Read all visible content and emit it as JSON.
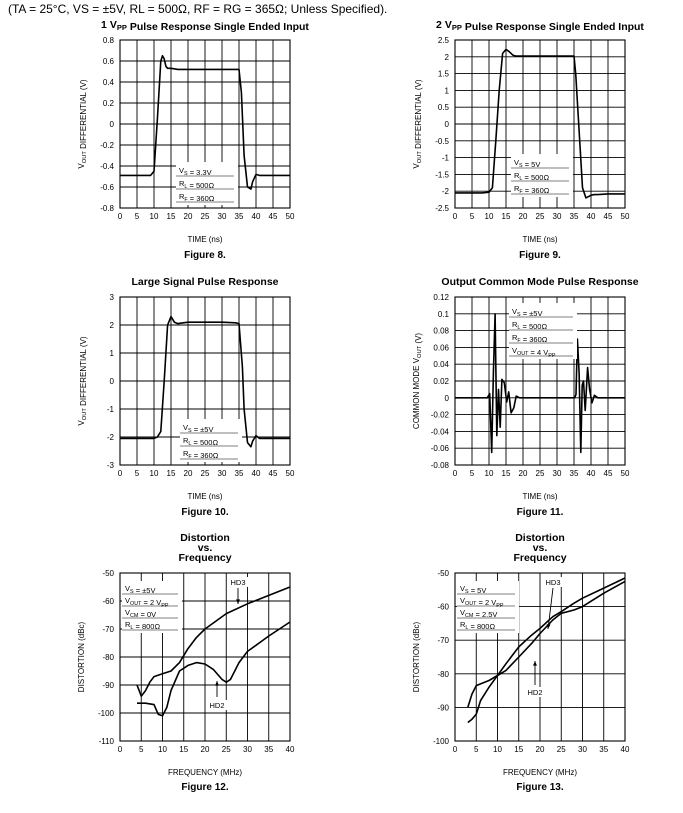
{
  "header": {
    "conditions": "(TA = 25°C, VS = ±5V, RL = 500Ω, RF = RG = 365Ω; Unless Specified)."
  },
  "chart_data": [
    {
      "id": "fig8",
      "type": "line",
      "title": [
        "1 VPP Pulse Response Single Ended Input"
      ],
      "caption": "Figure 8.",
      "xlabel": "TIME (ns)",
      "ylabel": "VOUT DIFFERENTIAL (V)",
      "xlim": [
        0,
        50
      ],
      "ylim": [
        -0.8,
        0.8
      ],
      "x_ticks": [
        "0",
        "5",
        "10",
        "15",
        "20",
        "25",
        "30",
        "35",
        "40",
        "45",
        "50"
      ],
      "y_ticks": [
        "0.8",
        "0.6",
        "0.4",
        "0.2",
        "0",
        "-0.2",
        "-0.4",
        "-0.6",
        "-0.8"
      ],
      "legend": [
        "VS = 3.3V",
        "RL = 500Ω",
        "RF = 360Ω"
      ],
      "series": [
        {
          "name": "VOUT",
          "x": [
            0,
            7,
            9,
            10,
            11,
            12,
            12.5,
            13,
            13.5,
            14,
            15,
            17,
            20,
            25,
            30,
            34,
            35,
            35.7,
            36.5,
            37.5,
            38.5,
            39,
            40,
            41,
            43,
            46,
            50
          ],
          "y": [
            -0.49,
            -0.49,
            -0.49,
            -0.45,
            0.05,
            0.6,
            0.65,
            0.62,
            0.55,
            0.53,
            0.53,
            0.52,
            0.52,
            0.52,
            0.52,
            0.52,
            0.52,
            0.3,
            -0.3,
            -0.6,
            -0.62,
            -0.55,
            -0.48,
            -0.49,
            -0.49,
            -0.49,
            -0.49
          ]
        }
      ]
    },
    {
      "id": "fig9",
      "type": "line",
      "title": [
        "2 VPP Pulse Response Single Ended Input"
      ],
      "caption": "Figure 9.",
      "xlabel": "TIME (ns)",
      "ylabel": "VOUT DIFFERENTIAL (V)",
      "xlim": [
        0,
        50
      ],
      "ylim": [
        -2.5,
        2.5
      ],
      "x_ticks": [
        "0",
        "5",
        "10",
        "15",
        "20",
        "25",
        "30",
        "35",
        "40",
        "45",
        "50"
      ],
      "y_ticks": [
        "2.5",
        "2",
        "1.5",
        "1",
        "0.5",
        "0",
        "-0.5",
        "-1",
        "-1.5",
        "-2",
        "-2.5"
      ],
      "legend": [
        "VS = 5V",
        "RL = 500Ω",
        "RF = 360Ω"
      ],
      "series": [
        {
          "name": "VOUT",
          "x": [
            0,
            8,
            10,
            11,
            12,
            13,
            14,
            15,
            16,
            17,
            18,
            20,
            25,
            30,
            35,
            35.5,
            36.5,
            37.5,
            38.5,
            39.5,
            40,
            41,
            42,
            45,
            50
          ],
          "y": [
            -2.05,
            -2.05,
            -2.03,
            -1.9,
            -0.5,
            1.0,
            2.1,
            2.22,
            2.15,
            2.05,
            2.02,
            2.02,
            2.02,
            2.02,
            2.02,
            1.5,
            -0.2,
            -1.9,
            -2.2,
            -2.15,
            -2.12,
            -2.1,
            -2.1,
            -2.08,
            -2.08
          ]
        }
      ]
    },
    {
      "id": "fig10",
      "type": "line",
      "title": [
        "Large Signal Pulse Response"
      ],
      "caption": "Figure 10.",
      "xlabel": "TIME (ns)",
      "ylabel": "VOUT DIFFERENTIAL (V)",
      "xlim": [
        0,
        50
      ],
      "ylim": [
        -3,
        3
      ],
      "x_ticks": [
        "0",
        "5",
        "10",
        "15",
        "20",
        "25",
        "30",
        "35",
        "40",
        "45",
        "50"
      ],
      "y_ticks": [
        "3",
        "2",
        "1",
        "0",
        "-1",
        "-2",
        "-3"
      ],
      "legend": [
        "VS = ±5V",
        "RL = 500Ω",
        "RF = 360Ω"
      ],
      "series": [
        {
          "name": "VOUT",
          "x": [
            0,
            10,
            11,
            12,
            13,
            14,
            15,
            16,
            17,
            20,
            25,
            30,
            34,
            35,
            36,
            36.5,
            37.5,
            38.5,
            39,
            40,
            41,
            43,
            50
          ],
          "y": [
            -2.05,
            -2.05,
            -2.0,
            -1.8,
            0.0,
            2.0,
            2.3,
            2.1,
            2.05,
            2.1,
            2.1,
            2.1,
            2.08,
            2.05,
            0.5,
            -1.0,
            -2.2,
            -2.35,
            -2.15,
            -1.95,
            -2.05,
            -2.05,
            -2.05
          ]
        }
      ]
    },
    {
      "id": "fig11",
      "type": "line",
      "title": [
        "Output Common Mode Pulse Response"
      ],
      "caption": "Figure 11.",
      "xlabel": "TIME (ns)",
      "ylabel": "COMMON MODE VOUT (V)",
      "xlim": [
        0,
        50
      ],
      "ylim": [
        -0.08,
        0.12
      ],
      "x_ticks": [
        "0",
        "5",
        "10",
        "15",
        "20",
        "25",
        "30",
        "35",
        "40",
        "45",
        "50"
      ],
      "y_ticks": [
        "0.12",
        "0.1",
        "0.08",
        "0.06",
        "0.04",
        "0.02",
        "0",
        "-0.02",
        "-0.04",
        "-0.06",
        "-0.08"
      ],
      "legend": [
        "VS = ±5V",
        "RL = 500Ω",
        "RF = 360Ω",
        "VOUT = 4 VPP"
      ],
      "series": [
        {
          "name": "VCM",
          "x": [
            0,
            9.5,
            10.2,
            10.8,
            11.3,
            11.8,
            12.3,
            12.8,
            13.3,
            13.8,
            14.5,
            15.2,
            15.8,
            16.5,
            17.3,
            18,
            19,
            20,
            25,
            30,
            35.2,
            35.6,
            36,
            36.5,
            37,
            37.4,
            37.8,
            38.3,
            39,
            39.6,
            40.3,
            41,
            42,
            44,
            50
          ],
          "y": [
            0,
            0,
            0.005,
            -0.065,
            0.03,
            0.1,
            -0.045,
            0.01,
            -0.035,
            0.022,
            0.018,
            -0.005,
            0.007,
            -0.018,
            -0.012,
            0.002,
            0,
            0,
            0,
            0,
            0,
            0.004,
            0.07,
            0.03,
            -0.065,
            0.015,
            0.02,
            -0.015,
            0.036,
            0.01,
            -0.006,
            0.003,
            0,
            0,
            0
          ]
        }
      ]
    },
    {
      "id": "fig12",
      "type": "line",
      "title": [
        "Distortion",
        "vs.",
        "Frequency"
      ],
      "caption": "Figure 12.",
      "xlabel": "FREQUENCY (MHz)",
      "ylabel": "DISTORTION (dBc)",
      "xlim": [
        0,
        40
      ],
      "ylim": [
        -110,
        -50
      ],
      "x_ticks": [
        "0",
        "5",
        "10",
        "15",
        "20",
        "25",
        "30",
        "35",
        "40"
      ],
      "y_ticks": [
        "-50",
        "-60",
        "-70",
        "-80",
        "-90",
        "-100",
        "-110"
      ],
      "legend": [
        "VS = ±5V",
        "VOUT = 2 VPP",
        "VCM = 0V",
        "RL = 800Ω"
      ],
      "labels": [
        "HD3",
        "HD2"
      ],
      "series": [
        {
          "name": "HD3",
          "x": [
            4,
            5,
            6,
            7,
            8,
            10,
            12,
            14,
            16,
            18,
            20,
            25,
            30,
            35,
            40
          ],
          "y": [
            -90,
            -94,
            -92,
            -89,
            -87,
            -86,
            -85,
            -82,
            -77,
            -73,
            -70,
            -64.5,
            -61,
            -58,
            -55
          ]
        },
        {
          "name": "HD2",
          "x": [
            4,
            6,
            8,
            9,
            10,
            11,
            12,
            14,
            16,
            18,
            20,
            22,
            24,
            25,
            26,
            28,
            30,
            35,
            40
          ],
          "y": [
            -96.5,
            -96.5,
            -97,
            -100.5,
            -101,
            -98,
            -92,
            -85,
            -83,
            -82,
            -82.5,
            -84.5,
            -88,
            -89,
            -88,
            -82,
            -78,
            -72.5,
            -67.5
          ]
        }
      ]
    },
    {
      "id": "fig13",
      "type": "line",
      "title": [
        "Distortion",
        "vs.",
        "Frequency"
      ],
      "caption": "Figure 13.",
      "xlabel": "FREQUENCY (MHz)",
      "ylabel": "DISTORTION (dBc)",
      "xlim": [
        0,
        40
      ],
      "ylim": [
        -100,
        -50
      ],
      "x_ticks": [
        "0",
        "5",
        "10",
        "15",
        "20",
        "25",
        "30",
        "35",
        "40"
      ],
      "y_ticks": [
        "-50",
        "-60",
        "-70",
        "-80",
        "-90",
        "-100"
      ],
      "legend": [
        "VS = 5V",
        "VOUT = 2 VPP",
        "VCM = 2.5V",
        "RL = 800Ω"
      ],
      "labels": [
        "HD3",
        "HD2"
      ],
      "series": [
        {
          "name": "HD3",
          "x": [
            3,
            4,
            5,
            6,
            8,
            10,
            12,
            15,
            18,
            20,
            23,
            25,
            28,
            30,
            35,
            40
          ],
          "y": [
            -90,
            -86,
            -83.5,
            -83,
            -82,
            -80.5,
            -79,
            -75,
            -71,
            -68,
            -64,
            -62,
            -61,
            -60,
            -56,
            -52.5
          ]
        },
        {
          "name": "HD2",
          "x": [
            3,
            4,
            5,
            6,
            8,
            10,
            12,
            15,
            18,
            20,
            23,
            25,
            28,
            30,
            35,
            40
          ],
          "y": [
            -94.5,
            -93.5,
            -92,
            -88,
            -84,
            -80.5,
            -77,
            -72,
            -68.5,
            -66.5,
            -63,
            -61.5,
            -59,
            -57.5,
            -54.5,
            -51.5
          ]
        }
      ]
    }
  ]
}
